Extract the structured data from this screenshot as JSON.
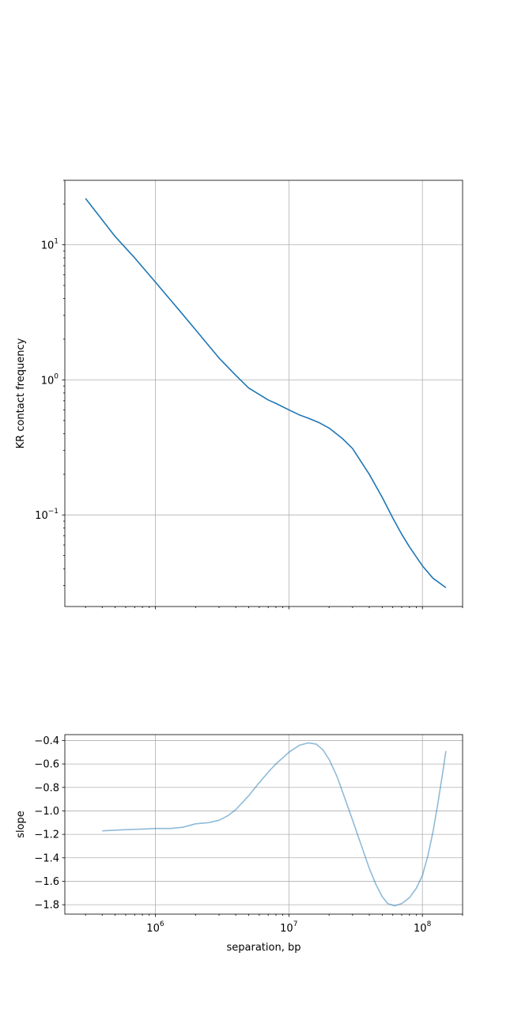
{
  "chart_data": [
    {
      "type": "line",
      "xlabel": "",
      "ylabel": "KR contact frequency",
      "xscale": "log",
      "yscale": "log",
      "xlim": [
        210000,
        200000000
      ],
      "ylim": [
        0.021,
        30
      ],
      "grid": true,
      "x_tick_labels": [],
      "y_ticks": [
        {
          "value": 0.1,
          "base": "10",
          "exp": "−1"
        },
        {
          "value": 1,
          "base": "10",
          "exp": "0"
        },
        {
          "value": 10,
          "base": "10",
          "exp": "1"
        }
      ],
      "series": [
        {
          "color": "#1f77b4",
          "x": [
            300000,
            500000,
            700000,
            1000000,
            1500000,
            2000000,
            3000000,
            4000000,
            5000000,
            6000000,
            7000000,
            8000000,
            10000000,
            12000000,
            14000000,
            17000000,
            20000000,
            25000000,
            30000000,
            40000000,
            50000000,
            60000000,
            70000000,
            80000000,
            100000000,
            120000000,
            150000000
          ],
          "y": [
            22,
            11.5,
            8.0,
            5.3,
            3.3,
            2.35,
            1.45,
            1.08,
            0.87,
            0.78,
            0.71,
            0.67,
            0.6,
            0.55,
            0.52,
            0.48,
            0.44,
            0.37,
            0.31,
            0.2,
            0.135,
            0.095,
            0.072,
            0.058,
            0.042,
            0.034,
            0.029
          ]
        }
      ]
    },
    {
      "type": "line",
      "xlabel": "separation, bp",
      "ylabel": "slope",
      "xscale": "log",
      "yscale": "linear",
      "xlim": [
        210000,
        200000000
      ],
      "ylim": [
        -1.88,
        -0.35
      ],
      "grid": true,
      "x_ticks": [
        {
          "value": 1000000,
          "base": "10",
          "exp": "6"
        },
        {
          "value": 10000000,
          "base": "10",
          "exp": "7"
        },
        {
          "value": 100000000,
          "base": "10",
          "exp": "8"
        }
      ],
      "y_tick_labels": [
        "−1.8",
        "−1.6",
        "−1.4",
        "−1.2",
        "−1.0",
        "−0.8",
        "−0.6",
        "−0.4"
      ],
      "y_tick_values": [
        -1.8,
        -1.6,
        -1.4,
        -1.2,
        -1.0,
        -0.8,
        -0.6,
        -0.4
      ],
      "series": [
        {
          "color": "#1f77b4",
          "x": [
            400000,
            600000,
            800000,
            1000000,
            1300000,
            1600000,
            2000000,
            2500000,
            3000000,
            3500000,
            4000000,
            5000000,
            6000000,
            7000000,
            8000000,
            10000000,
            12000000,
            14000000,
            16000000,
            18000000,
            20000000,
            23000000,
            26000000,
            30000000,
            35000000,
            40000000,
            45000000,
            50000000,
            55000000,
            62000000,
            70000000,
            80000000,
            90000000,
            100000000,
            110000000,
            120000000,
            130000000,
            140000000,
            150000000
          ],
          "y": [
            -1.17,
            -1.16,
            -1.155,
            -1.15,
            -1.15,
            -1.14,
            -1.11,
            -1.1,
            -1.08,
            -1.04,
            -0.99,
            -0.87,
            -0.76,
            -0.67,
            -0.6,
            -0.5,
            -0.44,
            -0.42,
            -0.43,
            -0.48,
            -0.56,
            -0.71,
            -0.88,
            -1.08,
            -1.3,
            -1.49,
            -1.63,
            -1.73,
            -1.79,
            -1.81,
            -1.79,
            -1.74,
            -1.66,
            -1.55,
            -1.38,
            -1.18,
            -0.95,
            -0.72,
            -0.49
          ]
        }
      ]
    }
  ]
}
